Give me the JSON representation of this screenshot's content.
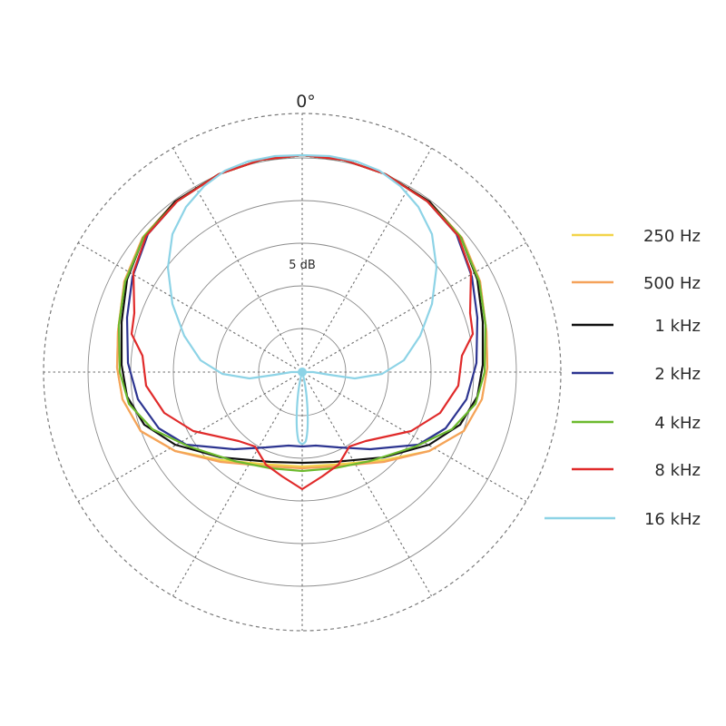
{
  "chart_data": {
    "type": "polar",
    "angle_label": "0°",
    "ring_label": "5 dB",
    "legend_position": "right",
    "series": [
      {
        "name": "250 Hz",
        "color": "#f2d44a"
      },
      {
        "name": "500 Hz",
        "color": "#f5a25a"
      },
      {
        "name": "1 kHz",
        "color": "#111111"
      },
      {
        "name": "2 kHz",
        "color": "#2c3490"
      },
      {
        "name": "4 kHz",
        "color": "#6cba2e"
      },
      {
        "name": "8 kHz",
        "color": "#e02a2a"
      },
      {
        "name": "16 kHz",
        "color": "#8dd3e6"
      }
    ]
  }
}
